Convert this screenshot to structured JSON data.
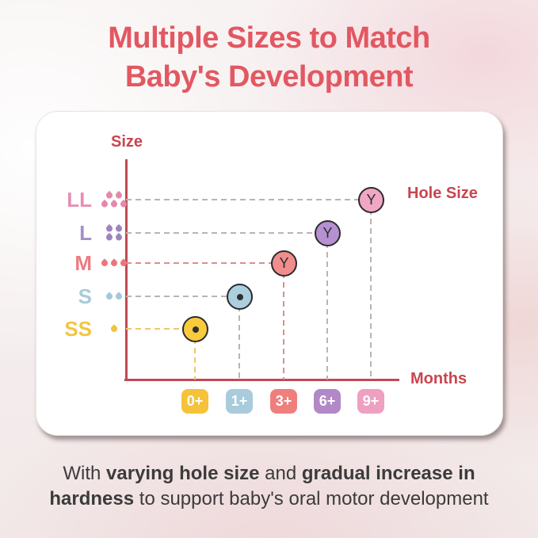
{
  "title": {
    "line1": "Multiple Sizes to Match",
    "line2": "Baby's Development"
  },
  "caption": {
    "segments": [
      {
        "text": "With ",
        "bold": false
      },
      {
        "text": "varying hole size",
        "bold": true
      },
      {
        "text": " and ",
        "bold": false
      },
      {
        "text": "gradual increase in",
        "bold": true,
        "break_after": true
      },
      {
        "text": "hardness",
        "bold": true
      },
      {
        "text": " to support baby's oral motor development",
        "bold": false
      }
    ]
  },
  "chart_data": {
    "type": "scatter",
    "ylabel": "Size",
    "xlabel": "Months",
    "legend_label": "Hole Size",
    "x_categories": [
      "0+",
      "1+",
      "3+",
      "6+",
      "9+"
    ],
    "x_badge_colors": [
      "#f5c23a",
      "#a9cbdc",
      "#ef7f7d",
      "#b388c7",
      "#eea0c1"
    ],
    "y_categories": [
      "SS",
      "S",
      "M",
      "L",
      "LL"
    ],
    "rows": [
      {
        "label": "LL",
        "drops": 5,
        "label_color": "#e68fb4",
        "drop_color": "#e289ad",
        "dash_color": "#bab4b4",
        "point": {
          "month": "9+",
          "marker": "Y",
          "fill": "#f2a6c6"
        }
      },
      {
        "label": "L",
        "drops": 4,
        "label_color": "#a48fc5",
        "drop_color": "#9d84bf",
        "dash_color": "#bab4b4",
        "point": {
          "month": "6+",
          "marker": "Y",
          "fill": "#b591d1"
        }
      },
      {
        "label": "M",
        "drops": 3,
        "label_color": "#ee7b81",
        "drop_color": "#ec757d",
        "dash_color": "#d78f93",
        "point": {
          "month": "3+",
          "marker": "Y",
          "fill": "#f18d8d"
        }
      },
      {
        "label": "S",
        "drops": 2,
        "label_color": "#a8cadb",
        "drop_color": "#a4c8da",
        "dash_color": "#bab4b4",
        "point": {
          "month": "1+",
          "marker": "dot",
          "fill": "#abcfdf"
        }
      },
      {
        "label": "SS",
        "drops": 1,
        "label_color": "#f3c540",
        "drop_color": "#f2c33c",
        "dash_color": "#eec86a",
        "point": {
          "month": "0+",
          "marker": "dot",
          "fill": "#f9cb3c"
        }
      }
    ],
    "grid": "dashed-leader-lines",
    "legend_position": "top-right"
  },
  "colors": {
    "title": "#e25862",
    "axis": "#c04a52",
    "axis_label": "#c9454f",
    "caption_text": "#3b3b3b",
    "card_bg": "#ffffff",
    "marker_outline": "#2b2b2b",
    "badge_text": "#ffffff"
  }
}
